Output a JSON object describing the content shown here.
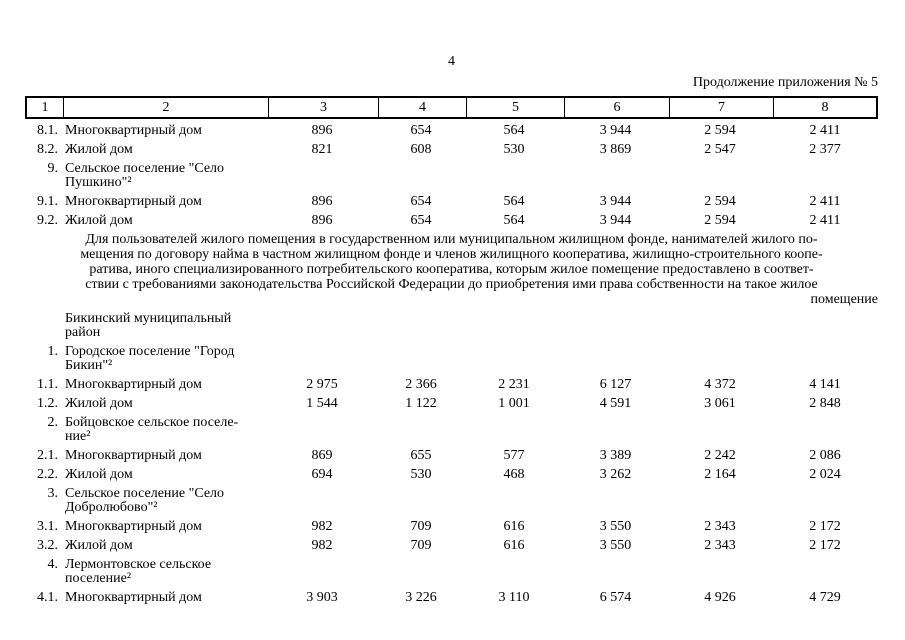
{
  "page": {
    "page_number": "4",
    "continuation_note": "Продолжение приложения № 5"
  },
  "table": {
    "header_cells": [
      "1",
      "2",
      "3",
      "4",
      "5",
      "6",
      "7",
      "8"
    ],
    "rows_before_note": [
      {
        "num": "8.1.",
        "label": "Многоквартирный дом",
        "values": [
          "896",
          "654",
          "564",
          "3 944",
          "2 594",
          "2 411"
        ]
      },
      {
        "num": "8.2.",
        "label": "Жилой дом",
        "values": [
          "821",
          "608",
          "530",
          "3 869",
          "2 547",
          "2 377"
        ]
      },
      {
        "num": "9.",
        "label": "Сельское поселение \"Село\nПушкино\"²",
        "values": []
      },
      {
        "num": "9.1.",
        "label": "Многоквартирный дом",
        "values": [
          "896",
          "654",
          "564",
          "3 944",
          "2 594",
          "2 411"
        ]
      },
      {
        "num": "9.2.",
        "label": "Жилой дом",
        "values": [
          "896",
          "654",
          "564",
          "3 944",
          "2 594",
          "2 411"
        ]
      }
    ],
    "rows_after_note": [
      {
        "num": "",
        "label": "Бикинский муниципальный\nрайон",
        "values": []
      },
      {
        "num": "1.",
        "label": "Городское поселение \"Город\nБикин\"²",
        "values": []
      },
      {
        "num": "1.1.",
        "label": "Многоквартирный дом",
        "values": [
          "2 975",
          "2 366",
          "2 231",
          "6 127",
          "4 372",
          "4 141"
        ]
      },
      {
        "num": "1.2.",
        "label": "Жилой дом",
        "values": [
          "1 544",
          "1 122",
          "1 001",
          "4 591",
          "3 061",
          "2 848"
        ]
      },
      {
        "num": "2.",
        "label": "Бойцовское сельское поселе-\nние²",
        "values": []
      },
      {
        "num": "2.1.",
        "label": "Многоквартирный дом",
        "values": [
          "869",
          "655",
          "577",
          "3 389",
          "2 242",
          "2 086"
        ]
      },
      {
        "num": "2.2.",
        "label": "Жилой дом",
        "values": [
          "694",
          "530",
          "468",
          "3 262",
          "2 164",
          "2 024"
        ]
      },
      {
        "num": "3.",
        "label": "Сельское поселение \"Село\nДобролюбово\"²",
        "values": []
      },
      {
        "num": "3.1.",
        "label": "Многоквартирный дом",
        "values": [
          "982",
          "709",
          "616",
          "3 550",
          "2 343",
          "2 172"
        ]
      },
      {
        "num": "3.2.",
        "label": "Жилой дом",
        "values": [
          "982",
          "709",
          "616",
          "3 550",
          "2 343",
          "2 172"
        ]
      },
      {
        "num": "4.",
        "label": "Лермонтовское сельское\nпоселение²",
        "values": []
      },
      {
        "num": "4.1.",
        "label": "Многоквартирный дом",
        "values": [
          "3 903",
          "3 226",
          "3 110",
          "6 574",
          "4 926",
          "4 729"
        ]
      }
    ]
  },
  "note": {
    "lines": [
      "Для пользователей жилого помещения в государственном или муниципальном жилищном фонде, нанимателей жилого по-",
      "мещения по договору найма в частном жилищном фонде и членов жилищного кооператива, жилищно-строительного коопе-",
      "ратива, иного специализированного потребительского кооператива, которым жилое помещение предоставлено в соответ-",
      "ствии с требованиями законодательства Российской Федерации до приобретения ими права собственности на такое жилое",
      "помещение"
    ]
  }
}
